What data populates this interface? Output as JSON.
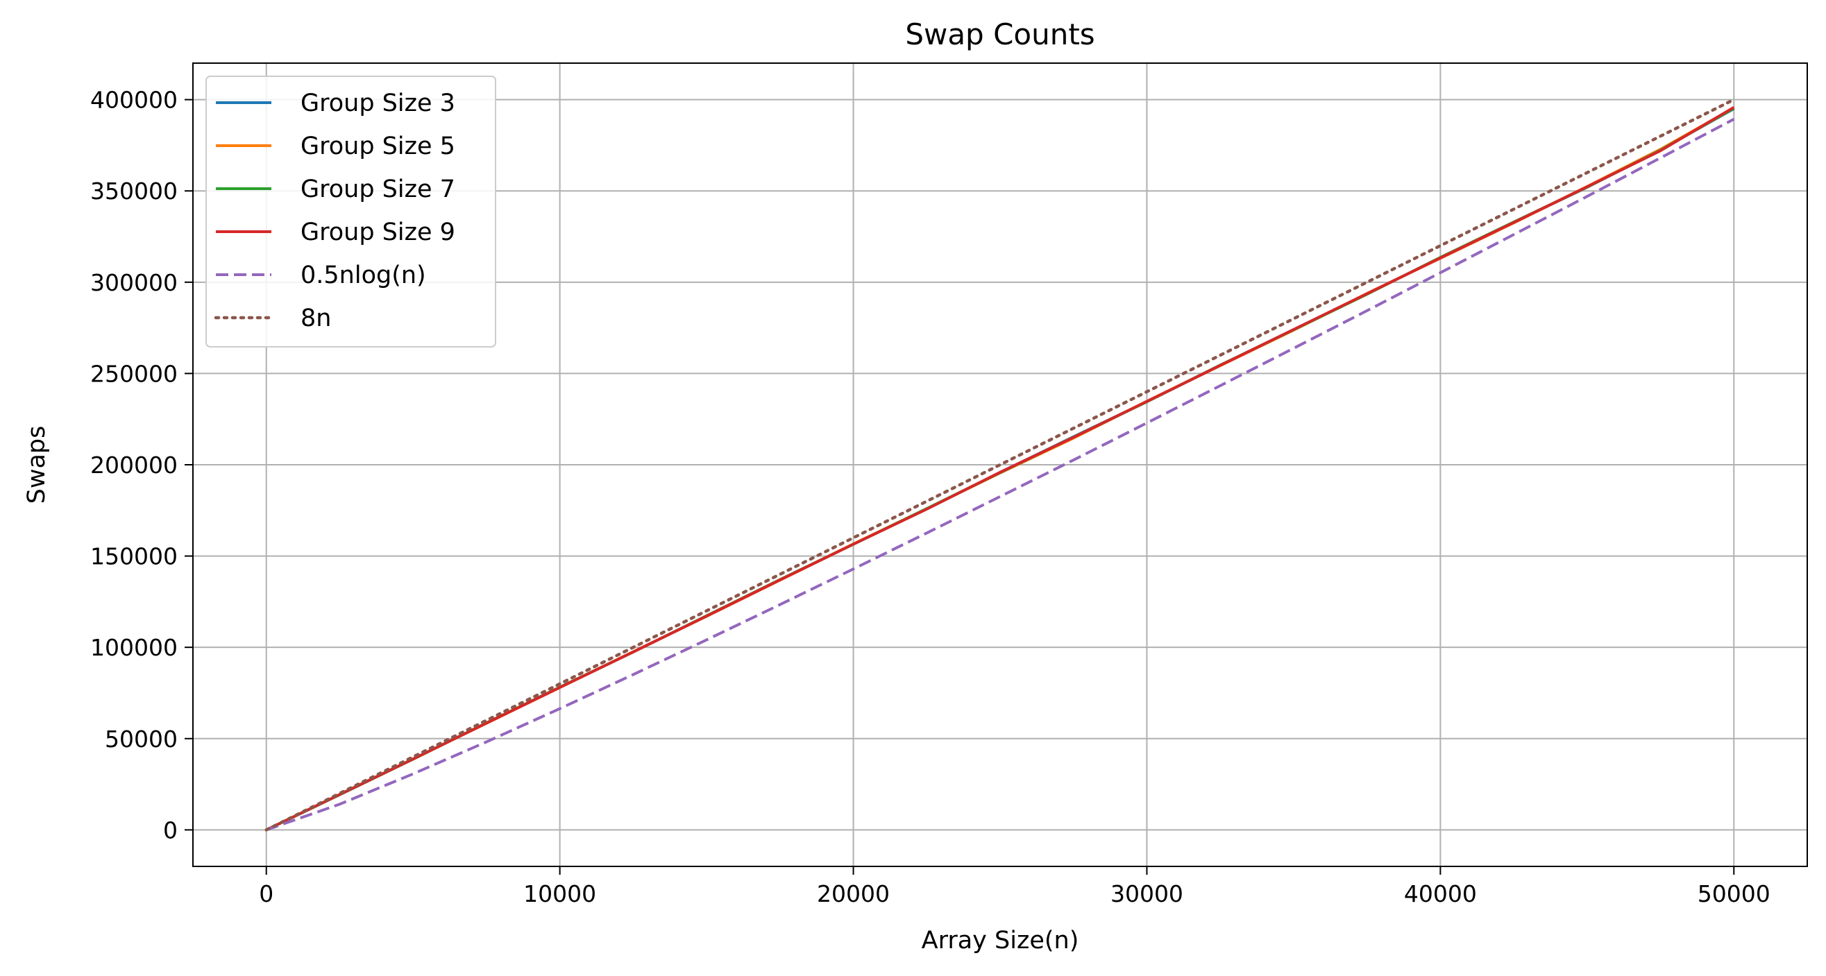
{
  "chart_data": {
    "type": "line",
    "title": "Swap Counts",
    "xlabel": "Array Size(n)",
    "ylabel": "Swaps",
    "xlim": [
      -2500,
      52500
    ],
    "ylim": [
      -20000,
      420000
    ],
    "xticks": [
      0,
      10000,
      20000,
      30000,
      40000,
      50000
    ],
    "yticks": [
      0,
      50000,
      100000,
      150000,
      200000,
      250000,
      300000,
      350000,
      400000
    ],
    "grid": true,
    "legend_position": "top-left",
    "series": [
      {
        "name": "Group Size 3",
        "color": "#1f77b4",
        "style": "solid",
        "x": [
          0,
          2500,
          5000,
          7500,
          10000,
          12500,
          15000,
          17500,
          20000,
          22500,
          25000,
          27500,
          30000,
          32500,
          35000,
          37500,
          40000,
          42500,
          45000,
          47500,
          50000
        ],
        "y": [
          0,
          19300,
          38800,
          58500,
          78100,
          97500,
          117200,
          137000,
          156500,
          175800,
          195800,
          215300,
          234600,
          254500,
          274000,
          293600,
          313400,
          332800,
          352000,
          372500,
          395000
        ]
      },
      {
        "name": "Group Size 5",
        "color": "#ff7f0e",
        "style": "solid",
        "x": [
          0,
          2500,
          5000,
          7500,
          10000,
          12500,
          15000,
          17500,
          20000,
          22500,
          25000,
          27500,
          30000,
          32500,
          35000,
          37500,
          40000,
          42500,
          45000,
          47500,
          50000
        ],
        "y": [
          0,
          19400,
          38900,
          58400,
          78000,
          97600,
          117000,
          136800,
          156600,
          175900,
          195500,
          214600,
          234800,
          254300,
          273700,
          293800,
          313100,
          332500,
          352400,
          372800,
          395500
        ]
      },
      {
        "name": "Group Size 7",
        "color": "#2ca02c",
        "style": "solid",
        "x": [
          0,
          2500,
          5000,
          7500,
          10000,
          12500,
          15000,
          17500,
          20000,
          22500,
          25000,
          27500,
          30000,
          32500,
          35000,
          37500,
          40000,
          42500,
          45000,
          47500,
          50000
        ],
        "y": [
          0,
          19300,
          38700,
          58600,
          78200,
          97400,
          117300,
          137100,
          156400,
          176000,
          195700,
          215100,
          234500,
          254600,
          273900,
          293400,
          313600,
          333000,
          352100,
          372300,
          395300
        ]
      },
      {
        "name": "Group Size 9",
        "color": "#d62728",
        "style": "solid",
        "x": [
          0,
          2500,
          5000,
          7500,
          10000,
          12500,
          15000,
          17500,
          20000,
          22500,
          25000,
          27500,
          30000,
          32500,
          35000,
          37500,
          40000,
          42500,
          45000,
          47500,
          50000
        ],
        "y": [
          0,
          19400,
          38800,
          58500,
          78000,
          97500,
          117100,
          136900,
          156500,
          175700,
          195900,
          215000,
          234700,
          254400,
          274100,
          293700,
          313300,
          332700,
          352300,
          372000,
          395800
        ]
      },
      {
        "name": "0.5nlog(n)",
        "color": "#9467bd",
        "style": "dashed",
        "x": [
          0,
          2500,
          5000,
          7500,
          10000,
          12500,
          15000,
          17500,
          20000,
          22500,
          25000,
          27500,
          30000,
          32500,
          35000,
          37500,
          40000,
          42500,
          45000,
          47500,
          50000
        ],
        "y": [
          0,
          14100,
          30700,
          48200,
          66400,
          85100,
          104100,
          123400,
          142900,
          162600,
          182600,
          202600,
          222900,
          243300,
          263800,
          284400,
          305200,
          326100,
          347000,
          368100,
          389300
        ]
      },
      {
        "name": "8n",
        "color": "#8c564b",
        "style": "dotted",
        "x": [
          0,
          50000
        ],
        "y": [
          0,
          400000
        ]
      }
    ]
  }
}
